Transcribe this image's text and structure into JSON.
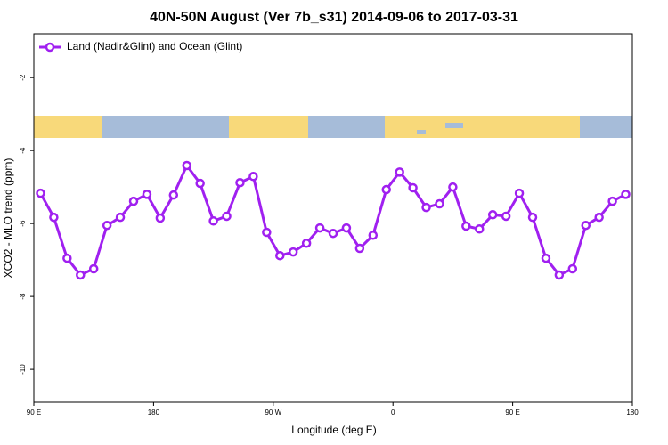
{
  "chart_data": {
    "type": "line",
    "title": "40N-50N August (Ver 7b_s31)   2014-09-06 to 2017-03-31",
    "xlabel": "Longitude (deg E)",
    "ylabel": "XCO2 - MLO trend (ppm)",
    "x": [
      95,
      105,
      115,
      125,
      135,
      145,
      155,
      165,
      175,
      185,
      195,
      205,
      215,
      225,
      235,
      245,
      255,
      265,
      275,
      285,
      295,
      305,
      315,
      325,
      335,
      345,
      355,
      365,
      375,
      385,
      395,
      405,
      415,
      425,
      435,
      445,
      455,
      465,
      475,
      485,
      495,
      505,
      515,
      525,
      535
    ],
    "series": [
      {
        "name": "Land (Nadir&Glint) and Ocean (Glint)",
        "color": "#a020f0",
        "values": [
          -5.17,
          -5.83,
          -6.95,
          -7.41,
          -7.24,
          -6.05,
          -5.83,
          -5.39,
          -5.2,
          -5.85,
          -5.22,
          -4.41,
          -4.9,
          -5.93,
          -5.8,
          -4.88,
          -4.71,
          -6.24,
          -6.88,
          -6.78,
          -6.54,
          -6.12,
          -6.27,
          -6.12,
          -6.68,
          -6.32,
          -5.07,
          -4.59,
          -5.02,
          -5.56,
          -5.46,
          -5.0,
          -6.07,
          -6.15,
          -5.76,
          -5.8,
          -5.17,
          -5.83,
          -6.95,
          -7.41,
          -7.24,
          -6.05,
          -5.83,
          -5.39,
          -5.2
        ]
      }
    ],
    "xlim": [
      90,
      540
    ],
    "xticks": [
      {
        "value": 90,
        "label": "90 E"
      },
      180,
      {
        "value": 270,
        "label": "90 W"
      },
      {
        "value": 360,
        "label": "0"
      },
      {
        "value": 450,
        "label": "90 E"
      },
      {
        "value": 540,
        "label": "180"
      }
    ],
    "ylim": [
      -10.9,
      -0.8
    ],
    "yticks": [
      -2,
      -4,
      -6,
      -8,
      -10
    ],
    "legend": "upper left"
  }
}
